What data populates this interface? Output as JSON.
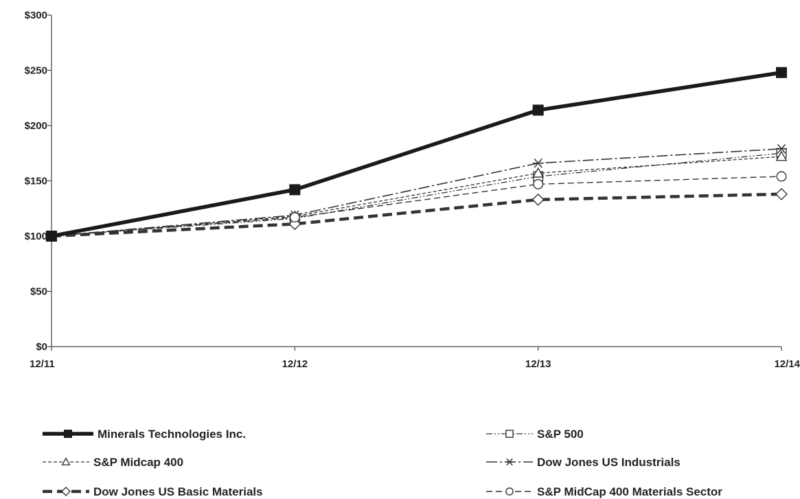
{
  "chart_data": {
    "type": "line",
    "categories": [
      "12/11",
      "12/12",
      "12/13",
      "12/14"
    ],
    "ylim": [
      0,
      300
    ],
    "yticks": [
      0,
      50,
      100,
      150,
      200,
      250,
      300
    ],
    "ytick_labels": [
      "$0",
      "$50",
      "$100",
      "$150",
      "$200",
      "$250",
      "$300"
    ],
    "grid": false,
    "legend_position": "bottom",
    "series": [
      {
        "name": "Minerals Technologies Inc.",
        "values": [
          100,
          142,
          214,
          248
        ],
        "marker": "filled-square",
        "line": "solid-thick",
        "color": "#1a1a1a"
      },
      {
        "name": "S&P 500",
        "values": [
          100,
          116,
          154,
          175
        ],
        "marker": "open-square",
        "line": "dash-dot-dot",
        "color": "#333333"
      },
      {
        "name": "S&P Midcap 400",
        "values": [
          100,
          118,
          157,
          172
        ],
        "marker": "open-triangle",
        "line": "short-dash",
        "color": "#333333"
      },
      {
        "name": "Dow Jones US Industrials",
        "values": [
          100,
          119,
          166,
          179
        ],
        "marker": "asterisk",
        "line": "long-dash-dot",
        "color": "#333333"
      },
      {
        "name": "Dow Jones US Basic Materials",
        "values": [
          100,
          111,
          133,
          138
        ],
        "marker": "open-diamond",
        "line": "dash-thick",
        "color": "#333333"
      },
      {
        "name": "S&P MidCap 400 Materials Sector",
        "values": [
          100,
          117,
          147,
          154
        ],
        "marker": "open-circle",
        "line": "medium-dash",
        "color": "#333333"
      }
    ]
  }
}
